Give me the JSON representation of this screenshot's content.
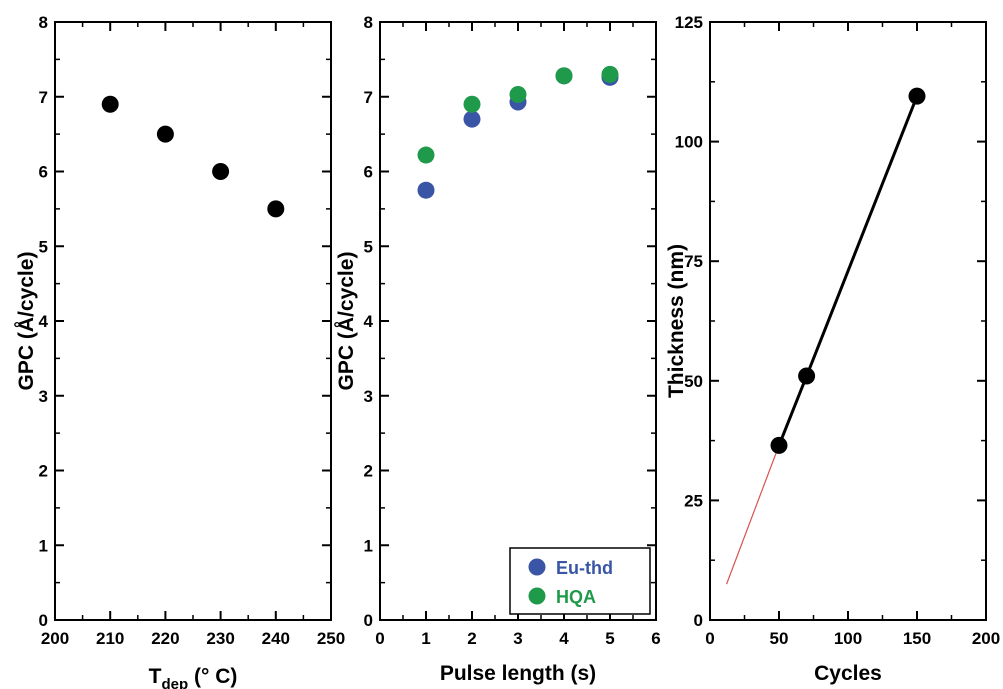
{
  "chart_data": [
    {
      "type": "scatter",
      "xlabel": "T",
      "xlabel_sub": "dep",
      "xlabel_rest": " (° C)",
      "ylabel": "GPC (Å/cycle)",
      "xlim": [
        200,
        250
      ],
      "ylim": [
        0,
        8
      ],
      "xticks": [
        200,
        210,
        220,
        230,
        240,
        250
      ],
      "yticks": [
        0,
        1,
        2,
        3,
        4,
        5,
        6,
        7,
        8
      ],
      "series": [
        {
          "color": "#000000",
          "x": [
            210,
            220,
            230,
            240
          ],
          "y": [
            6.9,
            6.5,
            6.0,
            5.5
          ]
        }
      ]
    },
    {
      "type": "scatter",
      "xlabel": "Pulse length (s)",
      "ylabel": "GPC (Å/cycle)",
      "xlim": [
        0,
        6
      ],
      "ylim": [
        0,
        8
      ],
      "xticks": [
        0,
        1,
        2,
        3,
        4,
        5,
        6
      ],
      "yticks": [
        0,
        1,
        2,
        3,
        4,
        5,
        6,
        7,
        8
      ],
      "legend": "bottom-right",
      "series": [
        {
          "name": "Eu-thd",
          "color": "#3a55a5",
          "x": [
            1,
            2,
            3,
            4,
            5
          ],
          "y": [
            5.75,
            6.7,
            6.93,
            7.28,
            7.26
          ]
        },
        {
          "name": "HQA",
          "color": "#1f9a4a",
          "x": [
            1,
            2,
            3,
            4,
            5
          ],
          "y": [
            6.22,
            6.9,
            7.03,
            7.28,
            7.3
          ]
        }
      ]
    },
    {
      "type": "line",
      "xlabel": "Cycles",
      "ylabel": "Thickness (nm)",
      "xlim": [
        0,
        200
      ],
      "ylim": [
        0,
        125
      ],
      "xticks": [
        0,
        50,
        100,
        150,
        200
      ],
      "yticks": [
        0,
        25,
        50,
        75,
        100,
        125
      ],
      "series": [
        {
          "color": "#000000",
          "x": [
            50,
            70,
            150
          ],
          "y": [
            36.5,
            51,
            109.5
          ],
          "line": true
        }
      ],
      "extrapolation": {
        "color": "#d9534f",
        "x": [
          12,
          50
        ],
        "y": [
          7.5,
          36.5
        ]
      }
    }
  ]
}
